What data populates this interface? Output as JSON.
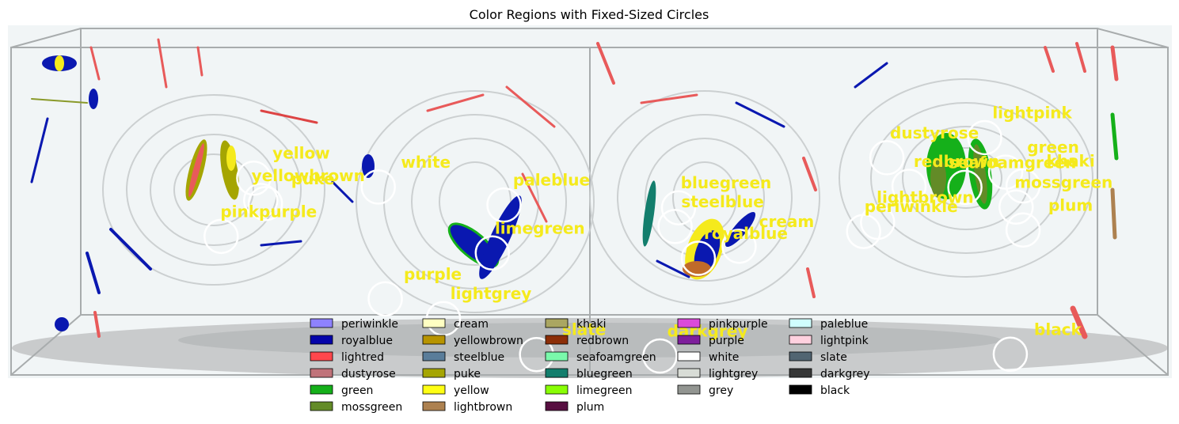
{
  "chart_data": {
    "type": "scatter",
    "title": "Color Regions with Fixed-Sized Circles",
    "markers": [
      {
        "label": "yellow",
        "x": 0.252,
        "y": 0.634
      },
      {
        "label": "yellowbrown",
        "x": 0.258,
        "y": 0.571
      },
      {
        "label": "puke",
        "x": 0.262,
        "y": 0.562
      },
      {
        "label": "pinkpurple",
        "x": 0.224,
        "y": 0.469
      },
      {
        "label": "white",
        "x": 0.359,
        "y": 0.609
      },
      {
        "label": "paleblue",
        "x": 0.467,
        "y": 0.558
      },
      {
        "label": "limegreen",
        "x": 0.457,
        "y": 0.422
      },
      {
        "label": "purple",
        "x": 0.365,
        "y": 0.292
      },
      {
        "label": "lightgrey",
        "x": 0.415,
        "y": 0.236
      },
      {
        "label": "slate",
        "x": 0.495,
        "y": 0.134
      },
      {
        "label": "darkgrey",
        "x": 0.601,
        "y": 0.13
      },
      {
        "label": "bluegreen",
        "x": 0.617,
        "y": 0.55
      },
      {
        "label": "steelblue",
        "x": 0.614,
        "y": 0.497
      },
      {
        "label": "cream",
        "x": 0.669,
        "y": 0.441
      },
      {
        "label": "royalblue",
        "x": 0.634,
        "y": 0.407
      },
      {
        "label": "dustyrose",
        "x": 0.796,
        "y": 0.692
      },
      {
        "label": "lightpink",
        "x": 0.88,
        "y": 0.749
      },
      {
        "label": "redbrown",
        "x": 0.815,
        "y": 0.611
      },
      {
        "label": "green",
        "x": 0.898,
        "y": 0.651
      },
      {
        "label": "seafoamgreen",
        "x": 0.863,
        "y": 0.608
      },
      {
        "label": "khaki",
        "x": 0.913,
        "y": 0.612
      },
      {
        "label": "mossgreen",
        "x": 0.907,
        "y": 0.552
      },
      {
        "label": "lightbrown",
        "x": 0.788,
        "y": 0.509
      },
      {
        "label": "periwinkle",
        "x": 0.776,
        "y": 0.483
      },
      {
        "label": "plum",
        "x": 0.913,
        "y": 0.487
      },
      {
        "label": "black",
        "x": 0.902,
        "y": 0.135
      }
    ],
    "legend": {
      "placement": "bottom-center",
      "columns": [
        [
          {
            "name": "periwinkle",
            "color": "#8e82fe"
          },
          {
            "name": "royalblue",
            "color": "#0504aa"
          },
          {
            "name": "lightred",
            "color": "#ff474c"
          },
          {
            "name": "dustyrose",
            "color": "#c0737a"
          },
          {
            "name": "green",
            "color": "#15b01a"
          },
          {
            "name": "mossgreen",
            "color": "#638b27"
          }
        ],
        [
          {
            "name": "cream",
            "color": "#ffffc2"
          },
          {
            "name": "yellowbrown",
            "color": "#b79400"
          },
          {
            "name": "steelblue",
            "color": "#5a7d9a"
          },
          {
            "name": "puke",
            "color": "#a5a502"
          },
          {
            "name": "yellow",
            "color": "#ffff14"
          },
          {
            "name": "lightbrown",
            "color": "#ad8150"
          }
        ],
        [
          {
            "name": "khaki",
            "color": "#aaa662"
          },
          {
            "name": "redbrown",
            "color": "#8c2e08"
          },
          {
            "name": "seafoamgreen",
            "color": "#7af9ab"
          },
          {
            "name": "bluegreen",
            "color": "#137e6d"
          },
          {
            "name": "limegreen",
            "color": "#89fe05"
          },
          {
            "name": "plum",
            "color": "#580f41"
          }
        ],
        [
          {
            "name": "pinkpurple",
            "color": "#db4bda"
          },
          {
            "name": "purple",
            "color": "#7e1e9c"
          },
          {
            "name": "white",
            "color": "#ffffff"
          },
          {
            "name": "lightgrey",
            "color": "#d8dcd6"
          },
          {
            "name": "grey",
            "color": "#929591"
          }
        ],
        [
          {
            "name": "paleblue",
            "color": "#d0fefe"
          },
          {
            "name": "lightpink",
            "color": "#ffd1df"
          },
          {
            "name": "slate",
            "color": "#516572"
          },
          {
            "name": "darkgrey",
            "color": "#363737"
          },
          {
            "name": "black",
            "color": "#000000"
          }
        ]
      ]
    },
    "label_color": "#f5ea1c",
    "circle_color": "#ffffff",
    "grid": false
  }
}
